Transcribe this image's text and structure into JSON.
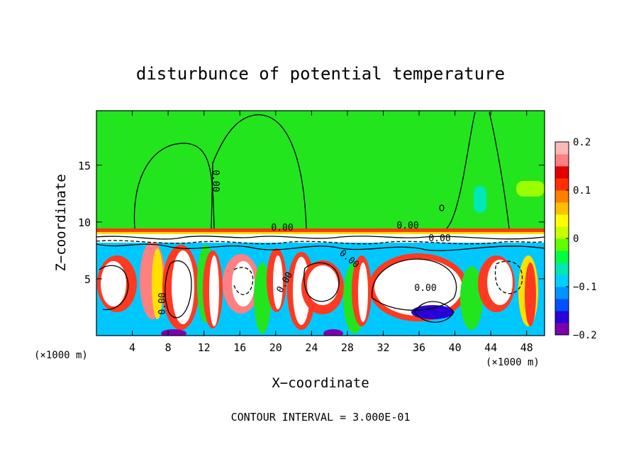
{
  "chart_data": {
    "type": "heatmap",
    "title": "disturbunce of potential temperature",
    "xlabel": "X−coordinate",
    "ylabel": "Z−coordinate",
    "x_unit": "(×1000 m)",
    "y_unit": "(×1000 m)",
    "xlim": [
      0,
      50
    ],
    "ylim": [
      0,
      19.8
    ],
    "x_ticks": [
      "4",
      "8",
      "12",
      "16",
      "20",
      "24",
      "28",
      "32",
      "36",
      "40",
      "44",
      "48"
    ],
    "x_tick_values": [
      4,
      8,
      12,
      16,
      20,
      24,
      28,
      32,
      36,
      40,
      44,
      48
    ],
    "y_ticks": [
      "5",
      "10",
      "15"
    ],
    "y_tick_values": [
      5,
      10,
      15
    ],
    "colorbar": {
      "min": -0.2,
      "max": 0.2,
      "tick_labels": [
        "0.2",
        "0.1",
        "0",
        "−0.1",
        "−0.2"
      ],
      "tick_values": [
        0.2,
        0.1,
        0,
        -0.1,
        -0.2
      ],
      "colors": [
        "#7b00b0",
        "#2a00d8",
        "#0050ff",
        "#0095ff",
        "#00d0ff",
        "#00e8b0",
        "#00ff40",
        "#60ff00",
        "#c8ff00",
        "#ffff00",
        "#ffc000",
        "#ff8000",
        "#ff3000",
        "#e00000",
        "#ff8080",
        "#ffb8b8"
      ]
    },
    "contour_labels": [
      "0.00",
      "0.00",
      "0.00",
      "0.00",
      "0.00",
      "0.00",
      "0.00",
      "0.00"
    ],
    "footer": "CONTOUR INTERVAL = 3.000E-01"
  }
}
